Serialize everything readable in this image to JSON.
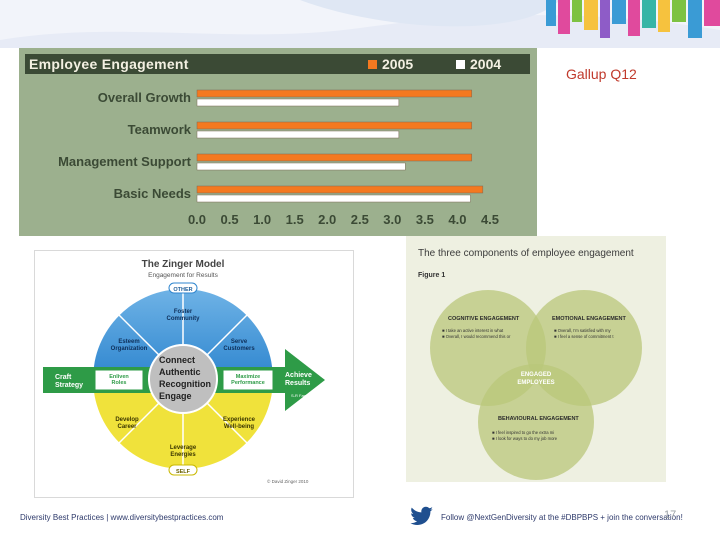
{
  "slide": {
    "note_label": "Gallup Q12",
    "page_number": "17"
  },
  "engagement_chart": {
    "title": "Employee Engagement",
    "legend": [
      {
        "label": "2005",
        "color": "#f47920"
      },
      {
        "label": "2004",
        "color": "#ffffff"
      }
    ]
  },
  "chart_data": {
    "type": "bar",
    "orientation": "horizontal",
    "title": "Employee Engagement",
    "categories": [
      "Overall Growth",
      "Teamwork",
      "Management Support",
      "Basic Needs"
    ],
    "series": [
      {
        "name": "2005",
        "values": [
          4.22,
          4.22,
          4.22,
          4.39
        ]
      },
      {
        "name": "2004",
        "values": [
          3.1,
          3.1,
          3.2,
          4.2
        ]
      }
    ],
    "xlim": [
      0,
      4.5
    ],
    "xticks": [
      "0.0",
      "0.5",
      "1.0",
      "1.5",
      "2.0",
      "2.5",
      "3.0",
      "3.5",
      "4.0",
      "4.5"
    ],
    "legend_position": "top-right",
    "grid": false
  },
  "zinger_model": {
    "title": "The Zinger Model",
    "subtitle": "Engagement for Results",
    "center_lines": [
      "Connect",
      "Authentic",
      "Recognition",
      "Engage"
    ],
    "top_label": "OTHER",
    "bottom_label": "SELF",
    "segments": {
      "foster": "Foster\nCommunity",
      "esteem": "Esteem\nOrganization",
      "serve": "Serve\nCustomers",
      "enliven": "Enliven\nRoles",
      "maximize": "Maximize\nPerformance",
      "develop": "Develop\nCareer",
      "experience": "Experience\nWell-being",
      "leverage": "Leverage\nEnergies"
    },
    "left_arrow": "Craft\nStrategy",
    "left_arrow_sub": "S-Rating",
    "right_arrow": "Achieve\nResults",
    "right_arrow_sub": "S-R Factor",
    "copyright": "© David Zinger 2010"
  },
  "three_components": {
    "title": "The three components of employee engagement",
    "figure_label": "Figure 1",
    "cognitive": {
      "heading": "COGNITIVE ENGAGEMENT",
      "bullets": [
        "I take an active interest in what happens in this organization",
        "Overall, I would recommend this organization as a great place to work"
      ]
    },
    "emotional": {
      "heading": "EMOTIONAL ENGAGEMENT",
      "bullets": [
        "Overall, I'm satisfied with my job",
        "I feel a sense of commitment to this organization"
      ]
    },
    "behavioural": {
      "heading": "BEHAVIOURAL ENGAGEMENT",
      "bullets": [
        "I feel inspired to go the extra mile to help this organization succeed",
        "I look for ways to do my job more effectively"
      ]
    },
    "center": "ENGAGED\nEMPLOYEES"
  },
  "footer": {
    "left": "Diversity Best Practices  |  www.diversitybestpractices.com",
    "right": "Follow @NextGenDiversity at the #DBPBPS + join the conversation!"
  }
}
